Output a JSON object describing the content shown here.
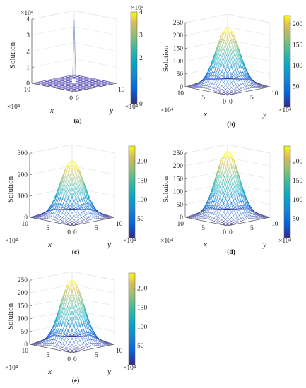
{
  "chart_data": [
    {
      "id": "a",
      "caption": "(a)",
      "type": "surface",
      "zlabel": "Solution",
      "xlabel": "x",
      "ylabel": "y",
      "x_tick_labels": [
        "10",
        "0"
      ],
      "y_tick_labels": [
        "0",
        "10"
      ],
      "x_multiplier": "×10⁴",
      "y_multiplier": "×10⁴",
      "zlim": [
        0,
        40000
      ],
      "z_ticks": [
        0,
        10000,
        20000,
        30000,
        40000
      ],
      "z_tick_labels": [
        "0",
        "1",
        "2",
        "3",
        "4"
      ],
      "z_multiplier": "×10⁴",
      "colorbar": {
        "ticks": [
          0,
          10000,
          20000,
          30000,
          40000
        ],
        "labels": [
          "0",
          "1",
          "2",
          "3",
          "4"
        ],
        "multiplier": "×10⁴",
        "min": 0,
        "max": 40000
      },
      "shape": "spike",
      "peak": 39000
    },
    {
      "id": "b",
      "caption": "(b)",
      "type": "surface",
      "zlabel": "Solution",
      "xlabel": "x",
      "ylabel": "y",
      "x_tick_labels": [
        "10",
        "5",
        "0"
      ],
      "y_tick_labels": [
        "0",
        "5",
        "10"
      ],
      "x_multiplier": "×10⁴",
      "y_multiplier": "×10⁴",
      "zlim": [
        0,
        250
      ],
      "z_ticks": [
        0,
        50,
        100,
        150,
        200,
        250
      ],
      "z_tick_labels": [
        "0",
        "50",
        "100",
        "150",
        "200",
        "250"
      ],
      "colorbar": {
        "ticks": [
          50,
          100,
          150,
          200
        ],
        "labels": [
          "50",
          "100",
          "150",
          "200"
        ],
        "multiplier": "",
        "min": 0,
        "max": 220
      },
      "shape": "gaussian",
      "peak": 230
    },
    {
      "id": "c",
      "caption": "(c)",
      "type": "surface",
      "zlabel": "Solution",
      "xlabel": "x",
      "ylabel": "y",
      "x_tick_labels": [
        "10",
        "5",
        "0"
      ],
      "y_tick_labels": [
        "0",
        "5",
        "10"
      ],
      "x_multiplier": "×10⁴",
      "y_multiplier": "×10⁴",
      "zlim": [
        0,
        300
      ],
      "z_ticks": [
        0,
        100,
        200,
        300
      ],
      "z_tick_labels": [
        "0",
        "100",
        "200",
        "300"
      ],
      "colorbar": {
        "ticks": [
          50,
          100,
          150,
          200
        ],
        "labels": [
          "50",
          "100",
          "150",
          "200"
        ],
        "multiplier": "",
        "min": 0,
        "max": 240
      },
      "shape": "gaussian",
      "peak": 265
    },
    {
      "id": "d",
      "caption": "(d)",
      "type": "surface",
      "zlabel": "Solution",
      "xlabel": "x",
      "ylabel": "y",
      "x_tick_labels": [
        "10",
        "5",
        "0"
      ],
      "y_tick_labels": [
        "0",
        "5",
        "10"
      ],
      "x_multiplier": "×10⁴",
      "y_multiplier": "×10⁴",
      "zlim": [
        0,
        250
      ],
      "z_ticks": [
        0,
        50,
        100,
        150,
        200,
        250
      ],
      "z_tick_labels": [
        "0",
        "50",
        "100",
        "150",
        "200",
        "250"
      ],
      "colorbar": {
        "ticks": [
          50,
          100,
          150,
          200
        ],
        "labels": [
          "50",
          "100",
          "150",
          "200"
        ],
        "multiplier": "",
        "min": 0,
        "max": 240
      },
      "shape": "gaussian",
      "peak": 258
    },
    {
      "id": "e",
      "caption": "(e)",
      "type": "surface",
      "zlabel": "Solution",
      "xlabel": "x",
      "ylabel": "y",
      "x_tick_labels": [
        "10",
        "5",
        "0"
      ],
      "y_tick_labels": [
        "0",
        "5",
        "10"
      ],
      "x_multiplier": "×10⁴",
      "y_multiplier": "×10⁴",
      "zlim": [
        0,
        250
      ],
      "z_ticks": [
        0,
        50,
        100,
        150,
        200,
        250
      ],
      "z_tick_labels": [
        "0",
        "50",
        "100",
        "150",
        "200",
        "250"
      ],
      "colorbar": {
        "ticks": [
          50,
          100,
          150,
          200
        ],
        "labels": [
          "50",
          "100",
          "150",
          "200"
        ],
        "multiplier": "",
        "min": 0,
        "max": 240
      },
      "shape": "gaussian",
      "peak": 250
    }
  ]
}
